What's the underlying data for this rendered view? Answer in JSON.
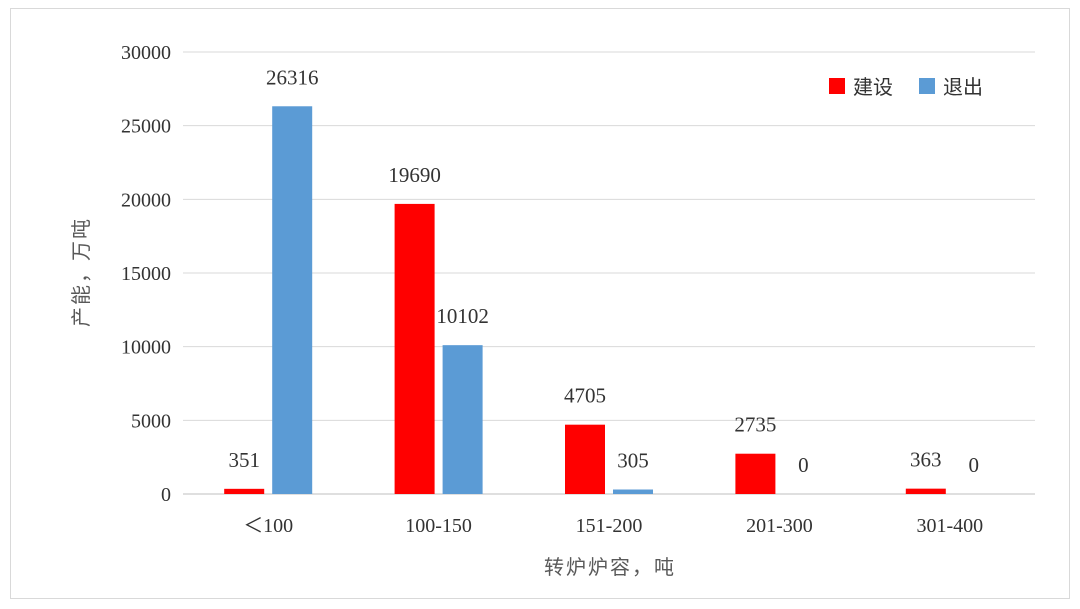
{
  "chart_data": {
    "type": "bar",
    "categories": [
      "＜100",
      "100-150",
      "151-200",
      "201-300",
      "301-400"
    ],
    "series": [
      {
        "name": "建设",
        "color": "#ff0000",
        "values": [
          351,
          19690,
          4705,
          2735,
          363
        ]
      },
      {
        "name": "退出",
        "color": "#5b9bd5",
        "values": [
          26316,
          10102,
          305,
          0,
          0
        ]
      }
    ],
    "xlabel": "转炉炉容，吨",
    "ylabel": "产能，万吨",
    "ylim": [
      0,
      30000
    ],
    "yticks": [
      0,
      5000,
      10000,
      15000,
      20000,
      25000,
      30000
    ],
    "grid": true,
    "legend_position": "top-right"
  }
}
